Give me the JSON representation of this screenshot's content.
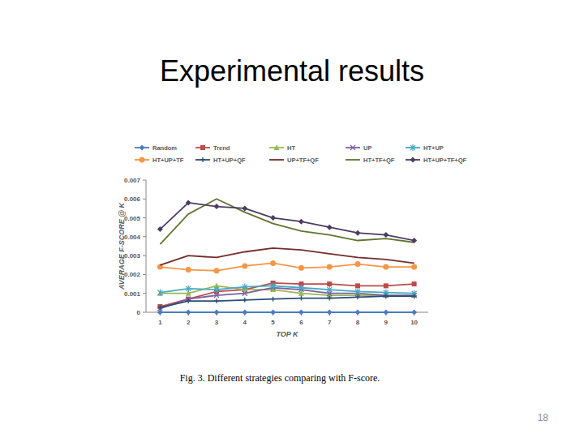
{
  "slide": {
    "title": "Experimental results",
    "caption": "Fig. 3. Different strategies comparing with F-score.",
    "page": 18
  },
  "chart_data": {
    "type": "line",
    "x_label": "TOP K",
    "y_label": "AVERAGE F-SCORE @ K",
    "x": [
      1,
      2,
      3,
      4,
      5,
      6,
      7,
      8,
      9,
      10
    ],
    "xlim": [
      0.5,
      10.5
    ],
    "xticks": [
      1,
      2,
      3,
      4,
      5,
      6,
      7,
      8,
      9,
      10
    ],
    "ylim": [
      0,
      0.007
    ],
    "yticks": [
      0,
      0.001,
      0.002,
      0.003,
      0.004,
      0.005,
      0.006,
      0.007
    ],
    "grid": false,
    "legend": "top",
    "series": [
      {
        "name": "Random",
        "color": "#4a7ebb",
        "marker": "diamond",
        "values": [
          0,
          0,
          0,
          0,
          0,
          0,
          0,
          0,
          0,
          0
        ]
      },
      {
        "name": "Trend",
        "color": "#be4b48",
        "marker": "square",
        "values": [
          0.0003,
          0.0007,
          0.0011,
          0.0012,
          0.00155,
          0.0015,
          0.0015,
          0.0014,
          0.0014,
          0.0015
        ]
      },
      {
        "name": "HT",
        "color": "#98b954",
        "marker": "triangle",
        "values": [
          0.001,
          0.001,
          0.0014,
          0.0012,
          0.0012,
          0.001,
          0.0009,
          0.0009,
          0.0009,
          0.0009
        ]
      },
      {
        "name": "UP",
        "color": "#7d60a0",
        "marker": "x",
        "values": [
          0.0002,
          0.0007,
          0.0009,
          0.001,
          0.0013,
          0.0012,
          0.001,
          0.001,
          0.0009,
          0.0009
        ]
      },
      {
        "name": "HT+UP",
        "color": "#46aac5",
        "marker": "asterisk",
        "values": [
          0.00105,
          0.00125,
          0.0012,
          0.00135,
          0.0014,
          0.0013,
          0.0012,
          0.0011,
          0.00105,
          0.001
        ]
      },
      {
        "name": "HT+UP+TF",
        "color": "#f79646",
        "marker": "circle",
        "values": [
          0.0024,
          0.00225,
          0.0022,
          0.00245,
          0.0026,
          0.00235,
          0.0024,
          0.00255,
          0.0024,
          0.0024
        ]
      },
      {
        "name": "HT+UP+QF",
        "color": "#2c4d75",
        "marker": "plus",
        "values": [
          0.00025,
          0.0006,
          0.0006,
          0.00065,
          0.0007,
          0.00075,
          0.00075,
          0.0008,
          0.00085,
          0.00085
        ]
      },
      {
        "name": "UP+TF+QF",
        "color": "#772c2a",
        "marker": "none",
        "values": [
          0.0025,
          0.003,
          0.0029,
          0.0032,
          0.0034,
          0.0033,
          0.0031,
          0.0029,
          0.0028,
          0.0026
        ]
      },
      {
        "name": "HT+TF+QF",
        "color": "#5f7530",
        "marker": "none",
        "values": [
          0.0036,
          0.0052,
          0.006,
          0.0053,
          0.0047,
          0.0043,
          0.0041,
          0.0038,
          0.0039,
          0.0037
        ]
      },
      {
        "name": "HT+UP+TF+QF",
        "color": "#4d3b62",
        "marker": "diamond",
        "values": [
          0.0044,
          0.0058,
          0.0056,
          0.0055,
          0.005,
          0.0048,
          0.0045,
          0.0042,
          0.0041,
          0.0038
        ]
      }
    ]
  }
}
